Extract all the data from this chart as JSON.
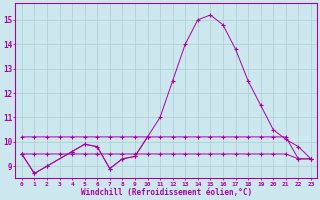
{
  "xlabel": "Windchill (Refroidissement éolien,°C)",
  "background_color": "#cce8ee",
  "grid_color": "#aacccc",
  "line_color": "#aa00aa",
  "line1_x": [
    0,
    1,
    2,
    4,
    5,
    6,
    7,
    8,
    9,
    10,
    11,
    12,
    13,
    14,
    15,
    16,
    17,
    18,
    19,
    20,
    21,
    22,
    23
  ],
  "line1_y": [
    9.5,
    8.7,
    9.0,
    9.6,
    9.9,
    9.8,
    8.9,
    9.3,
    9.4,
    10.2,
    11.0,
    12.5,
    14.0,
    15.0,
    15.2,
    14.8,
    13.8,
    12.5,
    11.5,
    10.5,
    10.1,
    9.8,
    9.3
  ],
  "line2_x": [
    0,
    1,
    2,
    3,
    4,
    5,
    6,
    7,
    8,
    9,
    10,
    11,
    12,
    13,
    14,
    15,
    16,
    17,
    18,
    19,
    20,
    21,
    22,
    23
  ],
  "line2_y": [
    10.2,
    10.2,
    10.2,
    10.2,
    10.2,
    10.2,
    10.2,
    10.2,
    10.2,
    10.2,
    10.2,
    10.2,
    10.2,
    10.2,
    10.2,
    10.2,
    10.2,
    10.2,
    10.2,
    10.2,
    10.2,
    10.2,
    9.3,
    9.3
  ],
  "line3_x": [
    0,
    1,
    2,
    3,
    4,
    5,
    6,
    7,
    8,
    9,
    10,
    11,
    12,
    13,
    14,
    15,
    16,
    17,
    18,
    19,
    20,
    21,
    22,
    23
  ],
  "line3_y": [
    9.5,
    9.5,
    9.5,
    9.5,
    9.5,
    9.5,
    9.5,
    9.5,
    9.5,
    9.5,
    9.5,
    9.5,
    9.5,
    9.5,
    9.5,
    9.5,
    9.5,
    9.5,
    9.5,
    9.5,
    9.5,
    9.5,
    9.3,
    9.3
  ],
  "line4_x": [
    0,
    1,
    2,
    4,
    5,
    6,
    7,
    8,
    9,
    10
  ],
  "line4_y": [
    9.5,
    8.7,
    9.0,
    9.6,
    9.9,
    9.8,
    8.9,
    9.3,
    9.4,
    10.2
  ],
  "ylim": [
    8.5,
    15.7
  ],
  "xlim": [
    -0.5,
    23.5
  ],
  "yticks": [
    9,
    10,
    11,
    12,
    13,
    14,
    15
  ],
  "xticks": [
    0,
    1,
    2,
    3,
    4,
    5,
    6,
    7,
    8,
    9,
    10,
    11,
    12,
    13,
    14,
    15,
    16,
    17,
    18,
    19,
    20,
    21,
    22,
    23
  ]
}
